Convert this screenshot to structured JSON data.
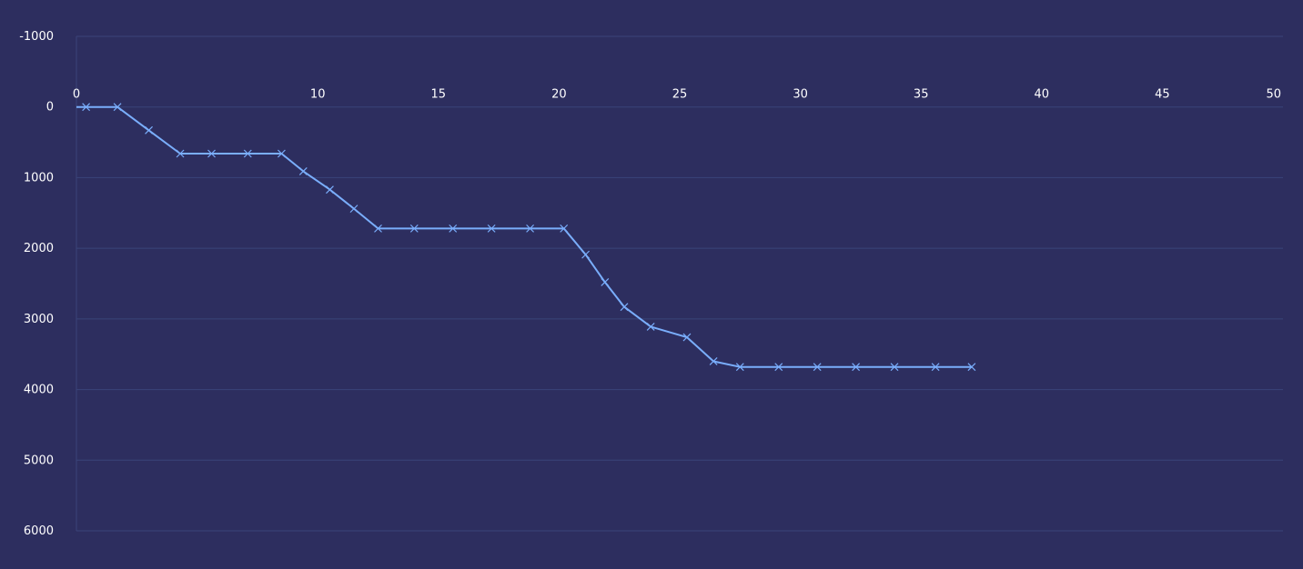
{
  "chart_data": {
    "type": "line",
    "title": "",
    "xlabel": "",
    "ylabel": "",
    "xlim": [
      0,
      50
    ],
    "ylim": [
      -1000,
      6000
    ],
    "y_inverted": true,
    "x_axis_position": "top",
    "grid": true,
    "x_ticks": [
      "0",
      "10",
      "15",
      "20",
      "25",
      "30",
      "35",
      "40",
      "45",
      "50"
    ],
    "y_ticks": [
      "-1000",
      "0",
      "1000",
      "2000",
      "3000",
      "4000",
      "5000",
      "6000"
    ],
    "colors": {
      "background": "#2d2e5f",
      "line": "#7aaefc",
      "grid": "#3a4479",
      "text": "#ffffff"
    },
    "series": [
      {
        "x": [
          0.4,
          1.7,
          3.0,
          4.3,
          5.6,
          7.1,
          8.5,
          9.4,
          10.5,
          11.5,
          12.5,
          14.0,
          15.6,
          17.2,
          18.8,
          20.2,
          21.1,
          21.9,
          22.7,
          23.8,
          25.3,
          26.4,
          27.5,
          29.1,
          30.7,
          32.3,
          33.9,
          35.6,
          37.1
        ],
        "y": [
          0,
          0,
          330,
          660,
          660,
          660,
          660,
          910,
          1170,
          1440,
          1720,
          1720,
          1720,
          1720,
          1720,
          1720,
          2090,
          2480,
          2830,
          3110,
          3260,
          3600,
          3680,
          3680,
          3680,
          3680,
          3680,
          3680,
          3680
        ]
      }
    ]
  }
}
